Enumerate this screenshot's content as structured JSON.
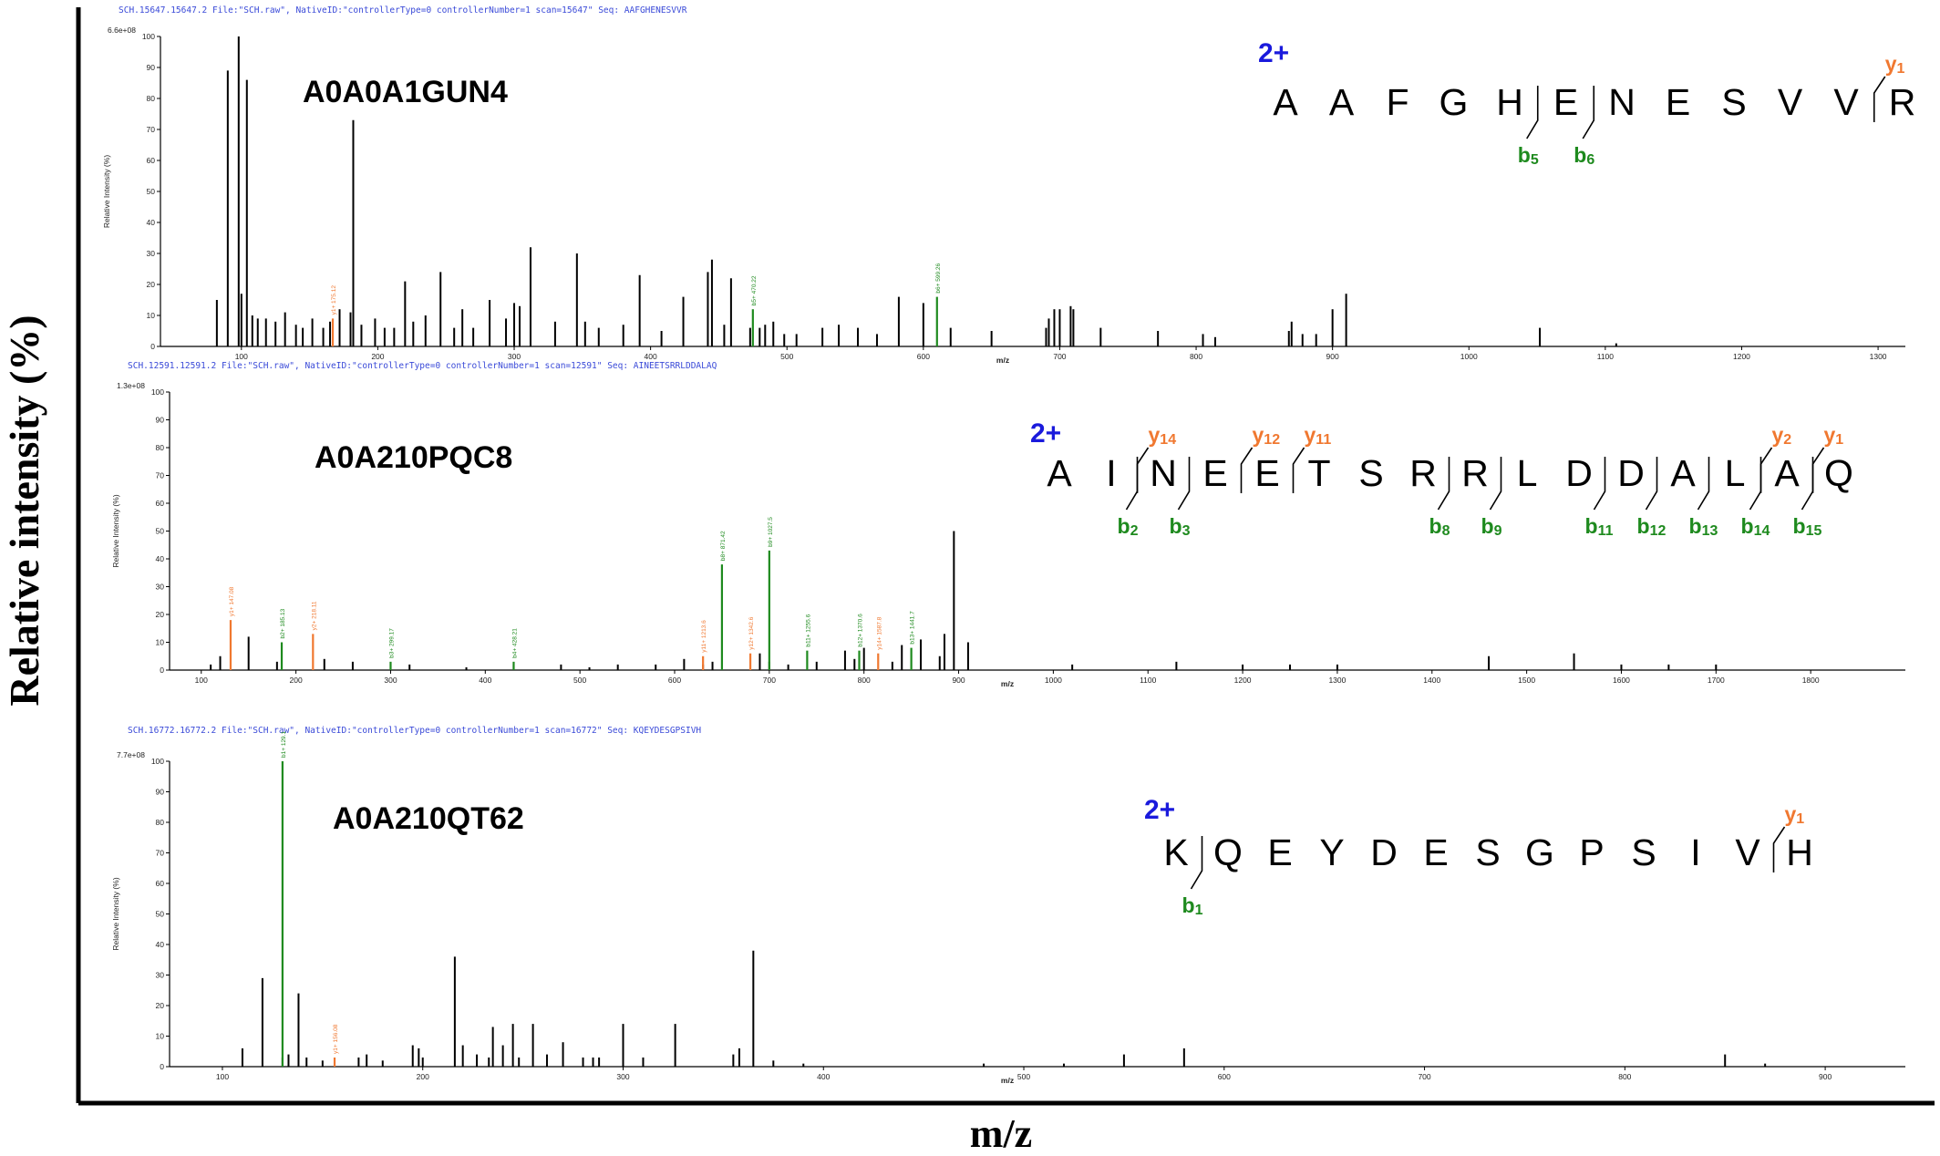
{
  "figure": {
    "ylabel": "Relative intensity (%)",
    "xlabel": "m/z",
    "colors": {
      "charge": "#1a1adc",
      "y_ion": "#f07830",
      "b_ion": "#1e8a1e",
      "peak": "#000000",
      "header": "#3a4ad8"
    }
  },
  "chart_data": [
    {
      "type": "bar",
      "protein": "A0A0A1GUN4",
      "header": "SCH.15647.15647.2 File:\"SCH.raw\", NativeID:\"controllerType=0 controllerNumber=1 scan=15647\"   Seq: AAFGHENESVVR",
      "max_label": "6.6e+08",
      "inner_ylabel": "Relative Intensity (%)",
      "inner_xlabel": "m/z",
      "xlim": [
        50,
        1320
      ],
      "ylim": [
        0,
        100
      ],
      "xticks": [
        100,
        200,
        300,
        400,
        500,
        600,
        700,
        800,
        900,
        1000,
        1100,
        1200,
        1300
      ],
      "yticks": [
        0,
        10,
        20,
        30,
        40,
        50,
        60,
        70,
        80,
        90,
        100
      ],
      "peptide": {
        "charge": "2+",
        "residues": [
          "A",
          "A",
          "F",
          "G",
          "H",
          "E",
          "N",
          "E",
          "S",
          "V",
          "V",
          "R"
        ],
        "y_ions": [
          {
            "label": "y",
            "sub": "1",
            "after": 11
          }
        ],
        "b_ions": [
          {
            "label": "b",
            "sub": "5",
            "after": 5
          },
          {
            "label": "b",
            "sub": "6",
            "after": 6
          }
        ]
      },
      "peaks": [
        [
          82,
          15
        ],
        [
          90,
          89
        ],
        [
          98,
          100
        ],
        [
          100,
          17
        ],
        [
          104,
          86
        ],
        [
          108,
          10
        ],
        [
          112,
          9
        ],
        [
          118,
          9
        ],
        [
          125,
          8
        ],
        [
          132,
          11
        ],
        [
          140,
          7
        ],
        [
          145,
          6
        ],
        [
          152,
          9
        ],
        [
          160,
          6
        ],
        [
          165,
          8
        ],
        [
          172,
          12
        ],
        [
          180,
          11
        ],
        [
          182,
          73
        ],
        [
          188,
          7
        ],
        [
          198,
          9
        ],
        [
          205,
          6
        ],
        [
          212,
          6
        ],
        [
          220,
          21
        ],
        [
          226,
          8
        ],
        [
          235,
          10
        ],
        [
          246,
          24
        ],
        [
          256,
          6
        ],
        [
          262,
          12
        ],
        [
          270,
          6
        ],
        [
          282,
          15
        ],
        [
          294,
          9
        ],
        [
          300,
          14
        ],
        [
          304,
          13
        ],
        [
          312,
          32
        ],
        [
          330,
          8
        ],
        [
          346,
          30
        ],
        [
          352,
          8
        ],
        [
          362,
          6
        ],
        [
          380,
          7
        ],
        [
          392,
          23
        ],
        [
          408,
          5
        ],
        [
          424,
          16
        ],
        [
          442,
          24
        ],
        [
          445,
          28
        ],
        [
          454,
          7
        ],
        [
          459,
          22
        ],
        [
          473,
          6
        ],
        [
          480,
          6
        ],
        [
          484,
          7
        ],
        [
          490,
          8
        ],
        [
          498,
          4
        ],
        [
          507,
          4
        ],
        [
          526,
          6
        ],
        [
          538,
          7
        ],
        [
          552,
          6
        ],
        [
          566,
          4
        ],
        [
          582,
          16
        ],
        [
          600,
          14
        ],
        [
          620,
          6
        ],
        [
          650,
          5
        ],
        [
          690,
          6
        ],
        [
          692,
          9
        ],
        [
          696,
          12
        ],
        [
          700,
          12
        ],
        [
          708,
          13
        ],
        [
          710,
          12
        ],
        [
          730,
          6
        ],
        [
          772,
          5
        ],
        [
          805,
          4
        ],
        [
          814,
          3
        ],
        [
          868,
          5
        ],
        [
          870,
          8
        ],
        [
          878,
          4
        ],
        [
          888,
          4
        ],
        [
          900,
          12
        ],
        [
          910,
          17
        ],
        [
          1052,
          6
        ],
        [
          1108,
          1
        ]
      ],
      "annotated_peaks": [
        {
          "mz": 167,
          "rel": 9,
          "ion": "y",
          "label": "y1+ 175.12",
          "fill": "#f07830"
        },
        {
          "mz": 475,
          "rel": 12,
          "ion": "b",
          "label": "b5+ 470.22",
          "fill": "#1e8a1e"
        },
        {
          "mz": 610,
          "rel": 16,
          "ion": "b",
          "label": "b6+ 599.26",
          "fill": "#1e8a1e"
        }
      ]
    },
    {
      "type": "bar",
      "protein": "A0A210PQC8",
      "header": "SCH.12591.12591.2 File:\"SCH.raw\", NativeID:\"controllerType=0 controllerNumber=1 scan=12591\"   Seq: AINEETSRRLDDALAQ",
      "max_label": "1.3e+08",
      "inner_ylabel": "Relative Intensity (%)",
      "inner_xlabel": "m/z",
      "xlim": [
        80,
        1900
      ],
      "ylim": [
        0,
        100
      ],
      "xticks": [
        100,
        200,
        300,
        400,
        500,
        600,
        700,
        800,
        900,
        1000,
        1100,
        1200,
        1300,
        1400,
        1500,
        1600,
        1700,
        1800
      ],
      "yticks": [
        0,
        10,
        20,
        30,
        40,
        50,
        60,
        70,
        80,
        90,
        100
      ],
      "peptide": {
        "charge": "2+",
        "residues": [
          "A",
          "I",
          "N",
          "E",
          "E",
          "T",
          "S",
          "R",
          "R",
          "L",
          "D",
          "D",
          "A",
          "L",
          "A",
          "Q"
        ],
        "y_ions": [
          {
            "label": "y",
            "sub": "14",
            "after": 2
          },
          {
            "label": "y",
            "sub": "12",
            "after": 4
          },
          {
            "label": "y",
            "sub": "11",
            "after": 5
          },
          {
            "label": "y",
            "sub": "2",
            "after": 14
          },
          {
            "label": "y",
            "sub": "1",
            "after": 15
          }
        ],
        "b_ions": [
          {
            "label": "b",
            "sub": "2",
            "after": 2
          },
          {
            "label": "b",
            "sub": "3",
            "after": 3
          },
          {
            "label": "b",
            "sub": "8",
            "after": 8
          },
          {
            "label": "b",
            "sub": "9",
            "after": 9
          },
          {
            "label": "b",
            "sub": "11",
            "after": 11
          },
          {
            "label": "b",
            "sub": "12",
            "after": 12
          },
          {
            "label": "b",
            "sub": "13",
            "after": 13
          },
          {
            "label": "b",
            "sub": "14",
            "after": 14
          },
          {
            "label": "b",
            "sub": "15",
            "after": 15
          }
        ]
      },
      "peaks": [
        [
          110,
          2
        ],
        [
          120,
          5
        ],
        [
          150,
          12
        ],
        [
          180,
          3
        ],
        [
          230,
          4
        ],
        [
          260,
          3
        ],
        [
          320,
          2
        ],
        [
          380,
          1
        ],
        [
          430,
          2
        ],
        [
          480,
          2
        ],
        [
          510,
          1
        ],
        [
          540,
          2
        ],
        [
          580,
          2
        ],
        [
          610,
          4
        ],
        [
          630,
          2
        ],
        [
          640,
          3
        ],
        [
          690,
          6
        ],
        [
          700,
          3
        ],
        [
          720,
          2
        ],
        [
          750,
          3
        ],
        [
          780,
          7
        ],
        [
          790,
          4
        ],
        [
          800,
          8
        ],
        [
          830,
          3
        ],
        [
          840,
          9
        ],
        [
          860,
          11
        ],
        [
          880,
          5
        ],
        [
          885,
          13
        ],
        [
          895,
          50
        ],
        [
          910,
          10
        ],
        [
          1020,
          2
        ],
        [
          1130,
          3
        ],
        [
          1200,
          2
        ],
        [
          1250,
          2
        ],
        [
          1300,
          2
        ],
        [
          1460,
          5
        ],
        [
          1550,
          6
        ],
        [
          1600,
          2
        ],
        [
          1650,
          2
        ],
        [
          1700,
          2
        ]
      ],
      "annotated_peaks": [
        {
          "mz": 131,
          "rel": 18,
          "ion": "y",
          "label": "y1+ 147.08",
          "fill": "#f07830"
        },
        {
          "mz": 185,
          "rel": 10,
          "ion": "b",
          "label": "b2+ 185.13",
          "fill": "#1e8a1e"
        },
        {
          "mz": 218,
          "rel": 13,
          "ion": "y",
          "label": "y2+ 218.11",
          "fill": "#f07830"
        },
        {
          "mz": 300,
          "rel": 3,
          "ion": "b",
          "label": "b3+ 299.17",
          "fill": "#1e8a1e"
        },
        {
          "mz": 430,
          "rel": 3,
          "ion": "b",
          "label": "b4+ 428.21",
          "fill": "#1e8a1e"
        },
        {
          "mz": 630,
          "rel": 5,
          "ion": "y",
          "label": "y11+ 1213.6",
          "fill": "#f07830"
        },
        {
          "mz": 650,
          "rel": 38,
          "ion": "b",
          "label": "b8+ 871.42",
          "fill": "#1e8a1e"
        },
        {
          "mz": 680,
          "rel": 6,
          "ion": "y",
          "label": "y12+ 1342.6",
          "fill": "#f07830"
        },
        {
          "mz": 700,
          "rel": 43,
          "ion": "b",
          "label": "b9+ 1027.5",
          "fill": "#1e8a1e"
        },
        {
          "mz": 740,
          "rel": 7,
          "ion": "b",
          "label": "b11+ 1255.6",
          "fill": "#1e8a1e"
        },
        {
          "mz": 795,
          "rel": 7,
          "ion": "b",
          "label": "b12+ 1370.6",
          "fill": "#1e8a1e"
        },
        {
          "mz": 815,
          "rel": 6,
          "ion": "y",
          "label": "y14+ 1587.8",
          "fill": "#f07830"
        },
        {
          "mz": 850,
          "rel": 8,
          "ion": "b",
          "label": "b13+ 1441.7",
          "fill": "#1e8a1e"
        }
      ]
    },
    {
      "type": "bar",
      "protein": "A0A210QT62",
      "header": "SCH.16772.16772.2 File:\"SCH.raw\", NativeID:\"controllerType=0 controllerNumber=1 scan=16772\"   Seq: KQEYDESGPSIVH",
      "max_label": "7.7e+08",
      "inner_ylabel": "Relative Intensity (%)",
      "inner_xlabel": "m/z",
      "xlim": [
        80,
        940
      ],
      "ylim": [
        0,
        100
      ],
      "xticks": [
        100,
        200,
        300,
        400,
        500,
        600,
        700,
        800,
        900
      ],
      "yticks": [
        0,
        10,
        20,
        30,
        40,
        50,
        60,
        70,
        80,
        90,
        100
      ],
      "peptide": {
        "charge": "2+",
        "residues": [
          "K",
          "Q",
          "E",
          "Y",
          "D",
          "E",
          "S",
          "G",
          "P",
          "S",
          "I",
          "V",
          "H"
        ],
        "y_ions": [
          {
            "label": "y",
            "sub": "1",
            "after": 12
          }
        ],
        "b_ions": [
          {
            "label": "b",
            "sub": "1",
            "after": 1
          }
        ]
      },
      "peaks": [
        [
          110,
          6
        ],
        [
          120,
          29
        ],
        [
          130,
          3
        ],
        [
          133,
          4
        ],
        [
          138,
          24
        ],
        [
          142,
          3
        ],
        [
          150,
          2
        ],
        [
          168,
          3
        ],
        [
          172,
          4
        ],
        [
          180,
          2
        ],
        [
          195,
          7
        ],
        [
          198,
          6
        ],
        [
          200,
          3
        ],
        [
          216,
          36
        ],
        [
          220,
          7
        ],
        [
          227,
          4
        ],
        [
          233,
          3
        ],
        [
          235,
          13
        ],
        [
          240,
          7
        ],
        [
          245,
          14
        ],
        [
          248,
          3
        ],
        [
          255,
          14
        ],
        [
          262,
          4
        ],
        [
          270,
          8
        ],
        [
          280,
          3
        ],
        [
          285,
          3
        ],
        [
          288,
          3
        ],
        [
          300,
          14
        ],
        [
          310,
          3
        ],
        [
          326,
          14
        ],
        [
          355,
          4
        ],
        [
          358,
          6
        ],
        [
          365,
          38
        ],
        [
          375,
          2
        ],
        [
          390,
          1
        ],
        [
          480,
          1
        ],
        [
          520,
          1
        ],
        [
          550,
          4
        ],
        [
          580,
          6
        ],
        [
          850,
          4
        ],
        [
          870,
          1
        ]
      ],
      "annotated_peaks": [
        {
          "mz": 130,
          "rel": 100,
          "ion": "b",
          "label": "b1+ 129.1",
          "fill": "#1e8a1e"
        },
        {
          "mz": 156,
          "rel": 3,
          "ion": "y",
          "label": "y1+ 156.08",
          "fill": "#f07830"
        }
      ]
    }
  ]
}
